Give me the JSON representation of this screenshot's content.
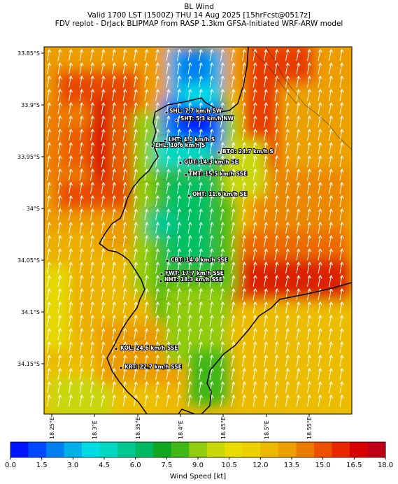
{
  "title": {
    "line1": "BL Wind",
    "line2": "Valid 1700 LST (1500Z) THU 14 Aug 2025 [15hrFcst@0517z]",
    "line3": "FDV replot - DrJack BLIPMAP from RASP 1.3km GFSA-Initiated WRF-ARW model"
  },
  "latitude_ticks": [
    "33.85°S",
    "33.9°S",
    "33.95°S",
    "34°S",
    "34.05°S",
    "34.1°S",
    "34.15°S"
  ],
  "longitude_ticks": [
    "18.25°E",
    "18.3°E",
    "18.35°E",
    "18.4°E",
    "18.45°E",
    "18.5°E",
    "18.55°E"
  ],
  "stations": [
    {
      "label": "SHL: 7.7 km/h SW"
    },
    {
      "label": "SHT: 5.3 km/h NW"
    },
    {
      "label": "LHT: 4.0 km/h S"
    },
    {
      "label": "LHL: 10.6 km/h S"
    },
    {
      "label": "BTO: 24.7 km/h S"
    },
    {
      "label": "GUT: 14.3 km/h SE"
    },
    {
      "label": "TMT: 15.5 km/h SSE"
    },
    {
      "label": "OHT: 11.6 km/h SE"
    },
    {
      "label": "CBT: 14.0 km/h SSE"
    },
    {
      "label": "FWT: 17.7 km/h SSE"
    },
    {
      "label": "NHT: 18.3 km/h SSE"
    },
    {
      "label": "KOL: 24.6 km/h SSE"
    },
    {
      "label": "KRT: 22.7 km/h SSE"
    }
  ],
  "colorbar": {
    "label": "Wind Speed [kt]",
    "min": 0,
    "max": 18,
    "tick_labels": [
      "0.0",
      "1.5",
      "3.0",
      "4.5",
      "6.0",
      "7.5",
      "9.0",
      "10.5",
      "12.0",
      "13.5",
      "15.0",
      "16.5",
      "18.0"
    ],
    "colors": [
      "#0015ff",
      "#0048ff",
      "#0080f0",
      "#00b0e8",
      "#00dce4",
      "#00d8c0",
      "#00c890",
      "#00b860",
      "#10a820",
      "#40b818",
      "#90cc10",
      "#c8d808",
      "#e8dc00",
      "#ecd000",
      "#ecb800",
      "#eca000",
      "#ec7c00",
      "#ec5000",
      "#e82800",
      "#d80000",
      "#c00018"
    ]
  },
  "wind_direction": "from SSE"
}
